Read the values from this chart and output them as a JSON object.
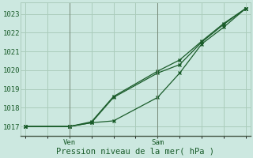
{
  "xlabel": "Pression niveau de la mer( hPa )",
  "ylim": [
    1016.5,
    1023.6
  ],
  "yticks": [
    1017,
    1018,
    1019,
    1020,
    1021,
    1022,
    1023
  ],
  "background_color": "#cce8e0",
  "grid_color": "#aaccbb",
  "line_color": "#1a5c2a",
  "ven_x": 2,
  "sam_x": 6,
  "xlim": [
    -0.2,
    10.2
  ],
  "series1_x": [
    0,
    2,
    3,
    4,
    6,
    7,
    8,
    9,
    10
  ],
  "series1_y": [
    1017.0,
    1017.0,
    1017.2,
    1017.3,
    1018.55,
    1019.85,
    1021.4,
    1022.3,
    1023.3
  ],
  "series2_x": [
    0,
    2,
    3,
    4,
    6,
    7,
    8,
    9,
    10
  ],
  "series2_y": [
    1017.0,
    1017.0,
    1017.25,
    1018.6,
    1019.95,
    1020.55,
    1021.55,
    1022.5,
    1023.3
  ],
  "series3_x": [
    0,
    2,
    3,
    4,
    6,
    7,
    8,
    9,
    10
  ],
  "series3_y": [
    1017.0,
    1017.0,
    1017.2,
    1018.55,
    1019.85,
    1020.3,
    1021.5,
    1022.45,
    1023.3
  ],
  "fontsize_label": 7.5,
  "fontsize_tick": 6.5
}
